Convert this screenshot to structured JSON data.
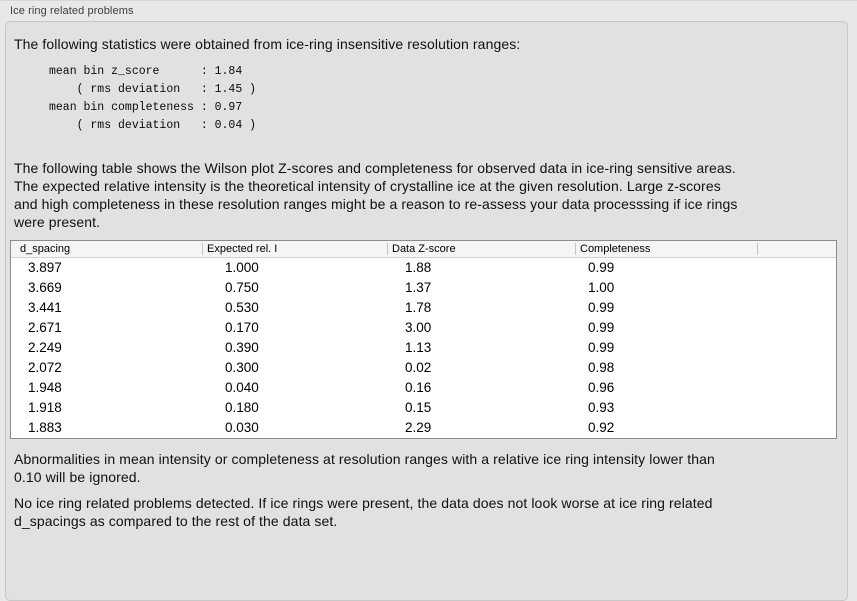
{
  "panel": {
    "title": "Ice ring related problems"
  },
  "intro": {
    "text": "The following statistics were obtained from ice-ring insensitive resolution ranges:"
  },
  "stats_block": {
    "text": "mean bin z_score      : 1.84\n    ( rms deviation   : 1.45 )\nmean bin completeness : 0.97\n    ( rms deviation   : 0.04 )"
  },
  "description": {
    "text": "The following table shows the Wilson plot Z-scores and completeness for observed data in ice-ring sensitive areas.\nThe expected relative intensity is the theoretical intensity of crystalline ice at the given resolution. Large z-scores\nand high completeness in these resolution ranges might be a reason to re-assess your data processsing if ice rings\nwere present."
  },
  "table": {
    "columns": [
      "d_spacing",
      "Expected rel. I",
      "Data Z-score",
      "Completeness"
    ],
    "column_ids": [
      "d-spacing",
      "expected-rel-i",
      "data-z-score",
      "completeness"
    ],
    "rows": [
      [
        "3.897",
        "1.000",
        "1.88",
        "0.99"
      ],
      [
        "3.669",
        "0.750",
        "1.37",
        "1.00"
      ],
      [
        "3.441",
        "0.530",
        "1.78",
        "0.99"
      ],
      [
        "2.671",
        "0.170",
        "3.00",
        "0.99"
      ],
      [
        "2.249",
        "0.390",
        "1.13",
        "0.99"
      ],
      [
        "2.072",
        "0.300",
        "0.02",
        "0.98"
      ],
      [
        "1.948",
        "0.040",
        "0.16",
        "0.96"
      ],
      [
        "1.918",
        "0.180",
        "0.15",
        "0.93"
      ],
      [
        "1.883",
        "0.030",
        "2.29",
        "0.92"
      ]
    ]
  },
  "notes": {
    "ignore_note": "Abnormalities in mean intensity or completeness at resolution ranges with a relative ice ring intensity lower than\n0.10 will be ignored.",
    "conclusion": "No ice ring related problems detected. If ice rings were present, the data does not look worse at ice ring related\nd_spacings as compared to the rest of the data set."
  },
  "colors": {
    "page_background": "#e8e8e8",
    "groupbox_background": "#e1e1e1",
    "groupbox_border": "#c7c7c7",
    "table_background": "#ffffff",
    "table_border": "#8c8c8c",
    "table_header_background": "#f5f5f5",
    "text": "#101010"
  }
}
